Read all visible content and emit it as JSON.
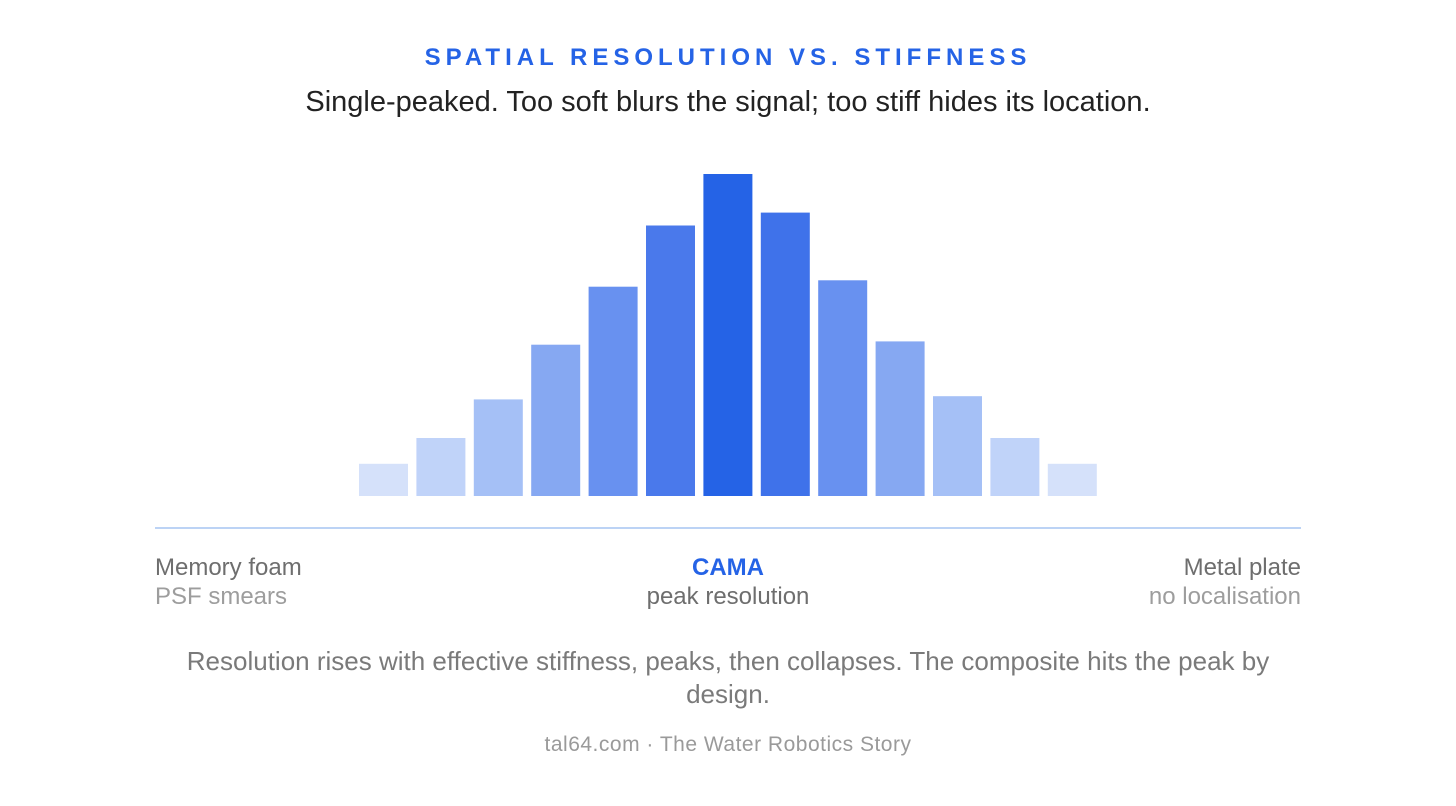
{
  "header": {
    "kicker": "SPATIAL RESOLUTION VS. STIFFNESS",
    "subtitle": "Single-peaked. Too soft blurs the signal; too stiff hides its location."
  },
  "chart_data": {
    "type": "bar",
    "title": "SPATIAL RESOLUTION VS. STIFFNESS",
    "subtitle": "Single-peaked. Too soft blurs the signal; too stiff hides its location.",
    "values": [
      10,
      18,
      30,
      47,
      65,
      84,
      100,
      88,
      67,
      48,
      31,
      18,
      10
    ],
    "ylim": [
      0,
      100
    ],
    "peak_index": 6,
    "colors": [
      "#d5e1fa",
      "#c0d3f9",
      "#a5c0f6",
      "#86a8f2",
      "#6891f0",
      "#4a79eb",
      "#2563e6",
      "#3f72ea",
      "#6891f0",
      "#86a8f2",
      "#a5c0f6",
      "#c0d3f9",
      "#d5e1fa"
    ],
    "axis_left": {
      "label": "Memory foam",
      "sublabel": "PSF smears"
    },
    "axis_center": {
      "label": "CAMA",
      "sublabel": "peak resolution"
    },
    "axis_right": {
      "label": "Metal plate",
      "sublabel": "no localisation"
    },
    "grid": false
  },
  "caption": "Resolution rises with effective stiffness, peaks, then collapses. The composite hits the peak by design.",
  "footer": "tal64.com · The Water Robotics Story",
  "colors": {
    "accent": "#2563e6",
    "axis": "#bcd3f5"
  }
}
